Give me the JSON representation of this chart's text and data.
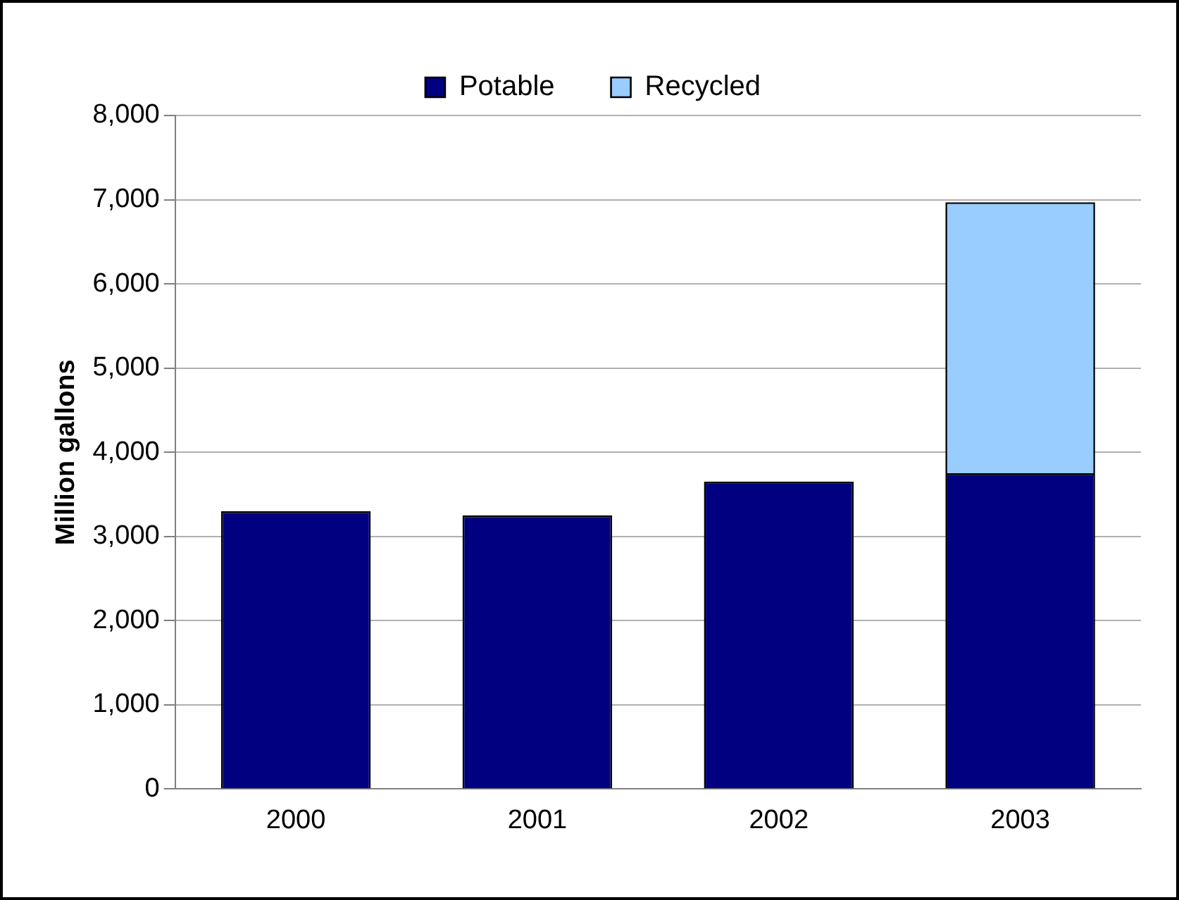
{
  "chart_data": {
    "type": "bar",
    "stacked": true,
    "ylabel": "Million gallons",
    "categories": [
      "2000",
      "2001",
      "2002",
      "2003"
    ],
    "series": [
      {
        "name": "Potable",
        "color": "#000080",
        "values": [
          3300,
          3250,
          3650,
          3750
        ]
      },
      {
        "name": "Recycled",
        "color": "#99ccff",
        "values": [
          null,
          null,
          null,
          3220
        ]
      }
    ],
    "ylim": [
      0,
      8000
    ],
    "yticks": [
      0,
      {
        "value": 1000,
        "label": "1,000"
      },
      {
        "value": 2000,
        "label": "2,000"
      },
      {
        "value": 3000,
        "label": "3,000"
      },
      {
        "value": 4000,
        "label": "4,000"
      },
      {
        "value": 5000,
        "label": "5,000"
      },
      {
        "value": 6000,
        "label": "6,000"
      },
      {
        "value": 7000,
        "label": "7,000"
      },
      {
        "value": 8000,
        "label": "8,000"
      }
    ],
    "grid": "y",
    "legend": "top"
  }
}
